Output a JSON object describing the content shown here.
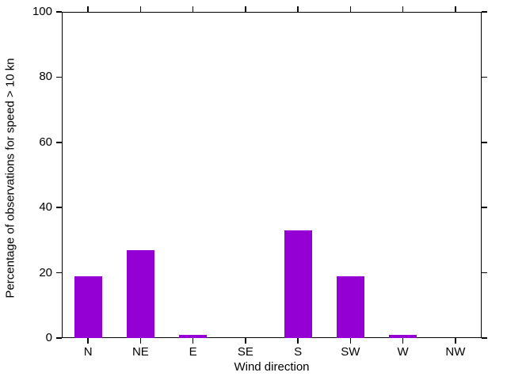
{
  "chart_data": {
    "type": "bar",
    "categories": [
      "N",
      "NE",
      "E",
      "SE",
      "S",
      "SW",
      "W",
      "NW"
    ],
    "values": [
      19,
      27,
      1,
      0,
      33,
      19,
      1,
      0
    ],
    "title": "",
    "xlabel": "Wind direction",
    "ylabel": "Percentage of observations for speed > 10 kn",
    "ylim": [
      0,
      100
    ],
    "yticks": [
      0,
      20,
      40,
      60,
      80,
      100
    ],
    "ytick_labels": [
      "0",
      "20",
      "40",
      "60",
      "80",
      "100"
    ],
    "grid": false,
    "legend_position": "none",
    "bar_color": "#9400d3",
    "axis_color": "#000000",
    "text_color": "#000000",
    "background_color": "#ffffff"
  }
}
